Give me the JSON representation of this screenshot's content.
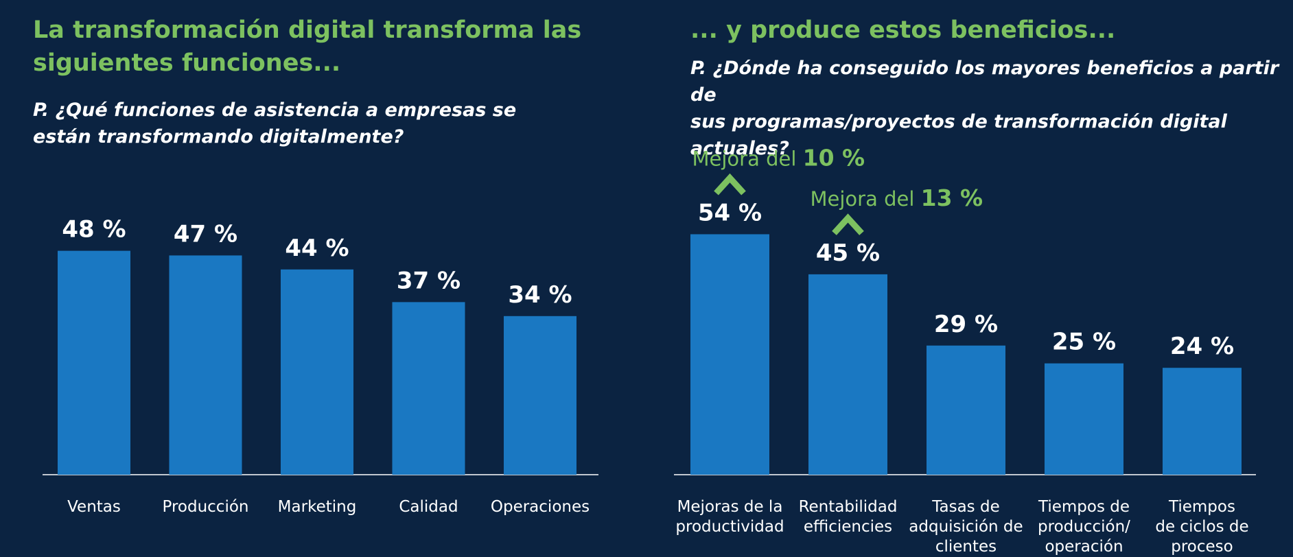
{
  "chart_data": [
    {
      "type": "bar",
      "title": "La transformación digital transforma las siguientes funciones...",
      "subtitle": "P. ¿Qué funciones de asistencia a empresas se están transformando digitalmente?",
      "categories": [
        "Ventas",
        "Producción",
        "Marketing",
        "Calidad",
        "Operaciones"
      ],
      "values": [
        48,
        47,
        44,
        37,
        34
      ],
      "value_labels": [
        "48 %",
        "47 %",
        "44 %",
        "37 %",
        "34 %"
      ],
      "unit": "%",
      "ylim": [
        0,
        50
      ],
      "bar_color": "#1a78c2",
      "grid": false
    },
    {
      "type": "bar",
      "title": "... y produce estos beneficios...",
      "subtitle": "P. ¿Dónde ha conseguido los mayores beneficios a partir de sus programas/proyectos de transformación digital actuales?",
      "categories": [
        "Mejoras de la productividad",
        "Rentabilidad efficiencies",
        "Tasas de adquisición de clientes",
        "Tiempos de producción/ operación",
        "Tiempos de ciclos de proceso"
      ],
      "values": [
        54,
        45,
        29,
        25,
        24
      ],
      "value_labels": [
        "54 %",
        "45 %",
        "29 %",
        "25 %",
        "24 %"
      ],
      "unit": "%",
      "ylim": [
        0,
        57
      ],
      "bar_color": "#1a78c2",
      "grid": false,
      "annotations": [
        {
          "category_index": 0,
          "prefix": "Mejora del ",
          "value": "10 %"
        },
        {
          "category_index": 1,
          "prefix": "Mejora del ",
          "value": "13 %"
        }
      ]
    }
  ],
  "left": {
    "title_lines": [
      "La transformación digital transforma las",
      "siguientes funciones..."
    ],
    "question_lines": [
      "P. ¿Qué funciones de asistencia a empresas se",
      "están transformando digitalmente?"
    ]
  },
  "right": {
    "title": "... y produce estos beneficios...",
    "question_lines": [
      "P. ¿Dónde ha conseguido los mayores beneficios a partir de",
      "sus programas/proyectos de transformación digital actuales?"
    ],
    "category_lines": [
      [
        "Mejoras de la",
        "productividad"
      ],
      [
        "Rentabilidad",
        "efficiencies"
      ],
      [
        "Tasas de",
        "adquisición de",
        "clientes"
      ],
      [
        "Tiempos de",
        "producción/",
        "operación"
      ],
      [
        "Tiempos",
        "de ciclos de",
        "proceso"
      ]
    ]
  },
  "colors": {
    "background": "#0b2341",
    "accent_green": "#7dc160",
    "bar_blue": "#1a78c2",
    "text_white": "#ffffff"
  }
}
